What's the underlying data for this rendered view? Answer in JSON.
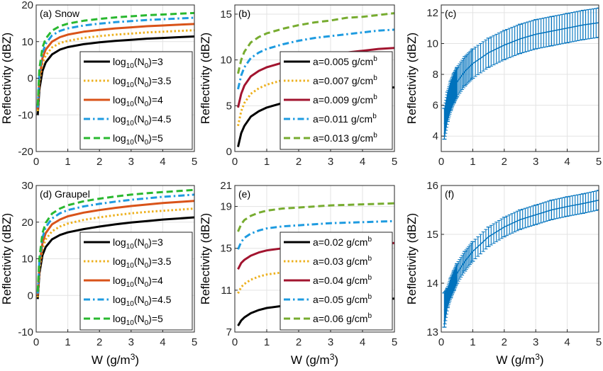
{
  "chart_data": [
    {
      "panel": "a",
      "type": "line",
      "title": "(a) Snow",
      "xlabel": "",
      "ylabel": "Reflectivity (dBZ)",
      "xlim": [
        0,
        5
      ],
      "ylim": [
        -20,
        20
      ],
      "xticks": [
        "0",
        "1",
        "2",
        "3",
        "4",
        "5"
      ],
      "yticks": [
        "-20",
        "-10",
        "0",
        "10",
        "20"
      ],
      "grid": true,
      "legend_position": "bottom-right",
      "series": [
        {
          "label_main": "log",
          "label_sub": "10",
          "label_rest": "(N",
          "label_sub2": "0",
          "label_end": ")=3",
          "color": "#000000",
          "style": "solid",
          "x": [
            0.05,
            0.1,
            0.2,
            0.3,
            0.5,
            0.75,
            1,
            1.5,
            2,
            2.5,
            3,
            3.5,
            4,
            4.5,
            5
          ],
          "y": [
            -10,
            -3,
            2,
            4.3,
            6.5,
            7.8,
            8.5,
            9.3,
            9.8,
            10.2,
            10.5,
            10.8,
            11.0,
            11.2,
            11.4
          ]
        },
        {
          "label_main": "log",
          "label_sub": "10",
          "label_rest": "(N",
          "label_sub2": "0",
          "label_end": ")=3.5",
          "color": "#EDB120",
          "style": "dotted",
          "x": [
            0.05,
            0.1,
            0.2,
            0.3,
            0.5,
            0.75,
            1,
            1.5,
            2,
            2.5,
            3,
            3.5,
            4,
            4.5,
            5
          ],
          "y": [
            -9,
            -1,
            4,
            6.2,
            8.4,
            9.6,
            10.2,
            11.0,
            11.5,
            11.9,
            12.2,
            12.5,
            12.7,
            12.9,
            13.1
          ]
        },
        {
          "label_main": "log",
          "label_sub": "10",
          "label_rest": "(N",
          "label_sub2": "0",
          "label_end": ")=4",
          "color": "#D95319",
          "style": "solid",
          "x": [
            0.05,
            0.1,
            0.2,
            0.3,
            0.5,
            0.75,
            1,
            1.5,
            2,
            2.5,
            3,
            3.5,
            4,
            4.5,
            5
          ],
          "y": [
            -8.5,
            0,
            5.5,
            7.8,
            10.0,
            11.2,
            11.9,
            12.7,
            13.2,
            13.6,
            13.9,
            14.2,
            14.4,
            14.6,
            14.8
          ]
        },
        {
          "label_main": "log",
          "label_sub": "10",
          "label_rest": "(N",
          "label_sub2": "0",
          "label_end": ")=4.5",
          "color": "#1E9BE0",
          "style": "dashdot",
          "x": [
            0.05,
            0.1,
            0.2,
            0.3,
            0.5,
            0.75,
            1,
            1.5,
            2,
            2.5,
            3,
            3.5,
            4,
            4.5,
            5
          ],
          "y": [
            -8,
            1.5,
            7,
            9.4,
            11.7,
            12.9,
            13.6,
            14.4,
            14.9,
            15.3,
            15.6,
            15.9,
            16.1,
            16.3,
            16.5
          ]
        },
        {
          "label_main": "log",
          "label_sub": "10",
          "label_rest": "(N",
          "label_sub2": "0",
          "label_end": ")=5",
          "color": "#2AB830",
          "style": "dashed",
          "x": [
            0.05,
            0.1,
            0.2,
            0.3,
            0.5,
            0.75,
            1,
            1.5,
            2,
            2.5,
            3,
            3.5,
            4,
            4.5,
            5
          ],
          "y": [
            -7.5,
            2.5,
            8.4,
            10.8,
            13.0,
            14.2,
            14.9,
            15.7,
            16.2,
            16.6,
            16.9,
            17.2,
            17.4,
            17.6,
            17.8
          ]
        }
      ]
    },
    {
      "panel": "b",
      "type": "line",
      "title": "(b)",
      "xlabel": "",
      "ylabel": "Reflectivity (dBZ)",
      "xlim": [
        0,
        5
      ],
      "ylim": [
        0,
        16
      ],
      "xticks": [
        "0",
        "1",
        "2",
        "3",
        "4",
        "5"
      ],
      "yticks": [
        "0",
        "5",
        "10",
        "15"
      ],
      "grid": true,
      "legend_position": "bottom-right",
      "series": [
        {
          "label": "a=0.005 g/cm",
          "label_sup": "b",
          "color": "#000000",
          "style": "solid",
          "x": [
            0.1,
            0.2,
            0.3,
            0.5,
            0.75,
            1,
            1.5,
            2,
            2.5,
            3,
            3.5,
            4,
            4.5,
            5
          ],
          "y": [
            0.5,
            2.0,
            2.8,
            3.8,
            4.4,
            4.8,
            5.3,
            5.7,
            6.0,
            6.3,
            6.5,
            6.7,
            6.9,
            7.0
          ]
        },
        {
          "label": "a=0.007 g/cm",
          "label_sup": "b",
          "color": "#EDB120",
          "style": "dotted",
          "x": [
            0.1,
            0.2,
            0.3,
            0.5,
            0.75,
            1,
            1.5,
            2,
            2.5,
            3,
            3.5,
            4,
            4.5,
            5
          ],
          "y": [
            2.8,
            4.4,
            5.3,
            6.3,
            6.9,
            7.3,
            7.8,
            8.2,
            8.5,
            8.7,
            9.0,
            9.2,
            9.3,
            9.5
          ]
        },
        {
          "label": "a=0.009 g/cm",
          "label_sup": "b",
          "color": "#A2142F",
          "style": "solid",
          "x": [
            0.1,
            0.2,
            0.3,
            0.5,
            0.75,
            1,
            1.5,
            2,
            2.5,
            3,
            3.5,
            4,
            4.5,
            5
          ],
          "y": [
            4.8,
            6.3,
            7.2,
            8.2,
            8.8,
            9.2,
            9.7,
            10.1,
            10.4,
            10.6,
            10.8,
            11.0,
            11.2,
            11.3
          ]
        },
        {
          "label": "a=0.011 g/cm",
          "label_sup": "b",
          "color": "#1E9BE0",
          "style": "dashdot",
          "x": [
            0.1,
            0.2,
            0.3,
            0.5,
            0.75,
            1,
            1.5,
            2,
            2.5,
            3,
            3.5,
            4,
            4.5,
            5
          ],
          "y": [
            6.8,
            8.3,
            9.2,
            10.2,
            10.8,
            11.2,
            11.7,
            12.1,
            12.4,
            12.6,
            12.8,
            13.0,
            13.2,
            13.3
          ]
        },
        {
          "label": "a=0.013 g/cm",
          "label_sup": "b",
          "color": "#77AC30",
          "style": "dashed",
          "x": [
            0.1,
            0.2,
            0.3,
            0.5,
            0.75,
            1,
            1.5,
            2,
            2.5,
            3,
            3.5,
            4,
            4.5,
            5
          ],
          "y": [
            8.5,
            10.0,
            10.9,
            11.9,
            12.5,
            12.9,
            13.4,
            13.8,
            14.1,
            14.3,
            14.6,
            14.7,
            14.9,
            15.1
          ]
        }
      ]
    },
    {
      "panel": "c",
      "type": "line",
      "title": "(c)",
      "xlabel": "",
      "ylabel": "Reflectivity (dBZ)",
      "xlim": [
        0,
        5
      ],
      "ylim": [
        3,
        12.5
      ],
      "xticks": [
        "0",
        "1",
        "2",
        "3",
        "4",
        "5"
      ],
      "yticks": [
        "4",
        "6",
        "8",
        "10",
        "12"
      ],
      "grid": true,
      "errorbars": true,
      "color": "#0072BD",
      "x": [
        0.1,
        0.2,
        0.3,
        0.4,
        0.5,
        0.75,
        1,
        1.5,
        2,
        2.5,
        3,
        3.5,
        4,
        4.5,
        5
      ],
      "y": [
        4.8,
        5.9,
        6.6,
        7.1,
        7.5,
        8.2,
        8.7,
        9.4,
        9.9,
        10.3,
        10.6,
        10.8,
        11.0,
        11.2,
        11.35
      ],
      "err": [
        1.0,
        0.95,
        0.95,
        0.95,
        0.95,
        0.95,
        0.95,
        0.95,
        0.95,
        0.95,
        0.95,
        0.95,
        0.95,
        0.95,
        0.95
      ]
    },
    {
      "panel": "d",
      "type": "line",
      "title": "(d) Graupel",
      "xlabel": "W (g/m",
      "xlabel_sup": "3",
      "xlabel_end": ")",
      "ylabel": "Reflectivity (dBZ)",
      "xlim": [
        0,
        5
      ],
      "ylim": [
        -10,
        30
      ],
      "xticks": [
        "0",
        "1",
        "2",
        "3",
        "4",
        "5"
      ],
      "yticks": [
        "-10",
        "0",
        "10",
        "20",
        "30"
      ],
      "grid": true,
      "legend_position": "bottom-right",
      "series": [
        {
          "label_main": "log",
          "label_sub": "10",
          "label_rest": "(N",
          "label_sub2": "0",
          "label_end": ")=3",
          "color": "#000000",
          "style": "solid",
          "x": [
            0.05,
            0.1,
            0.2,
            0.3,
            0.5,
            0.75,
            1,
            1.5,
            2,
            2.5,
            3,
            3.5,
            4,
            4.5,
            5
          ],
          "y": [
            -1,
            6,
            11,
            13.2,
            15.3,
            16.5,
            17.2,
            18.1,
            18.8,
            19.4,
            19.9,
            20.3,
            20.7,
            21.0,
            21.3
          ]
        },
        {
          "label_main": "log",
          "label_sub": "10",
          "label_rest": "(N",
          "label_sub2": "0",
          "label_end": ")=3.5",
          "color": "#EDB120",
          "style": "dotted",
          "x": [
            0.05,
            0.1,
            0.2,
            0.3,
            0.5,
            0.75,
            1,
            1.5,
            2,
            2.5,
            3,
            3.5,
            4,
            4.5,
            5
          ],
          "y": [
            -0.5,
            7,
            12.8,
            15.3,
            17.5,
            18.8,
            19.6,
            20.6,
            21.3,
            21.9,
            22.4,
            22.8,
            23.1,
            23.4,
            23.7
          ]
        },
        {
          "label_main": "log",
          "label_sub": "10",
          "label_rest": "(N",
          "label_sub2": "0",
          "label_end": ")=4",
          "color": "#D95319",
          "style": "solid",
          "x": [
            0.05,
            0.1,
            0.2,
            0.3,
            0.5,
            0.75,
            1,
            1.5,
            2,
            2.5,
            3,
            3.5,
            4,
            4.5,
            5
          ],
          "y": [
            0,
            8,
            14.3,
            17.0,
            19.4,
            20.7,
            21.6,
            22.6,
            23.3,
            23.9,
            24.4,
            24.8,
            25.2,
            25.5,
            25.8
          ]
        },
        {
          "label_main": "log",
          "label_sub": "10",
          "label_rest": "(N",
          "label_sub2": "0",
          "label_end": ")=4.5",
          "color": "#1E9BE0",
          "style": "dashdot",
          "x": [
            0.05,
            0.1,
            0.2,
            0.3,
            0.5,
            0.75,
            1,
            1.5,
            2,
            2.5,
            3,
            3.5,
            4,
            4.5,
            5
          ],
          "y": [
            0.5,
            9,
            15.8,
            18.6,
            21.0,
            22.4,
            23.3,
            24.3,
            25.0,
            25.6,
            26.1,
            26.5,
            26.9,
            27.2,
            27.5
          ]
        },
        {
          "label_main": "log",
          "label_sub": "10",
          "label_rest": "(N",
          "label_sub2": "0",
          "label_end": ")=5",
          "color": "#2AB830",
          "style": "dashed",
          "x": [
            0.05,
            0.1,
            0.2,
            0.3,
            0.5,
            0.75,
            1,
            1.5,
            2,
            2.5,
            3,
            3.5,
            4,
            4.5,
            5
          ],
          "y": [
            1,
            10,
            17.0,
            19.8,
            22.3,
            23.7,
            24.6,
            25.7,
            26.4,
            27.0,
            27.5,
            27.9,
            28.2,
            28.5,
            28.8
          ]
        }
      ]
    },
    {
      "panel": "e",
      "type": "line",
      "title": "(e)",
      "xlabel": "W (g/m",
      "xlabel_sup": "3",
      "xlabel_end": ")",
      "ylabel": "Reflectivity (dBZ)",
      "xlim": [
        0,
        5
      ],
      "ylim": [
        7,
        21
      ],
      "xticks": [
        "0",
        "1",
        "2",
        "3",
        "4",
        "5"
      ],
      "yticks": [
        "7",
        "11",
        "15",
        "19",
        "21"
      ],
      "grid": true,
      "legend_position": "bottom-right",
      "series": [
        {
          "label": "a=0.02 g/cm",
          "label_sup": "b",
          "color": "#000000",
          "style": "solid",
          "x": [
            0.1,
            0.2,
            0.3,
            0.5,
            0.75,
            1,
            1.5,
            2,
            2.5,
            3,
            3.5,
            4,
            4.5,
            5
          ],
          "y": [
            7.6,
            8.1,
            8.4,
            8.8,
            9.1,
            9.3,
            9.5,
            9.7,
            9.8,
            9.9,
            10.0,
            10.1,
            10.15,
            10.2
          ]
        },
        {
          "label": "a=0.03 g/cm",
          "label_sup": "b",
          "color": "#EDB120",
          "style": "dotted",
          "x": [
            0.1,
            0.2,
            0.3,
            0.5,
            0.75,
            1,
            1.5,
            2,
            2.5,
            3,
            3.5,
            4,
            4.5,
            5
          ],
          "y": [
            10.7,
            11.3,
            11.6,
            12.0,
            12.3,
            12.5,
            12.7,
            12.9,
            13.0,
            13.1,
            13.2,
            13.3,
            13.35,
            13.4
          ]
        },
        {
          "label": "a=0.04 g/cm",
          "label_sup": "b",
          "color": "#A2142F",
          "style": "solid",
          "x": [
            0.1,
            0.2,
            0.3,
            0.5,
            0.75,
            1,
            1.5,
            2,
            2.5,
            3,
            3.5,
            4,
            4.5,
            5
          ],
          "y": [
            13.0,
            13.6,
            13.9,
            14.3,
            14.6,
            14.8,
            15.0,
            15.1,
            15.2,
            15.3,
            15.35,
            15.4,
            15.45,
            15.5
          ]
        },
        {
          "label": "a=0.05 g/cm",
          "label_sup": "b",
          "color": "#1E9BE0",
          "style": "dashdot",
          "x": [
            0.1,
            0.2,
            0.3,
            0.5,
            0.75,
            1,
            1.5,
            2,
            2.5,
            3,
            3.5,
            4,
            4.5,
            5
          ],
          "y": [
            14.9,
            15.6,
            16.0,
            16.4,
            16.7,
            16.9,
            17.1,
            17.2,
            17.3,
            17.4,
            17.45,
            17.5,
            17.55,
            17.6
          ]
        },
        {
          "label": "a=0.06 g/cm",
          "label_sup": "b",
          "color": "#77AC30",
          "style": "dashed",
          "x": [
            0.1,
            0.2,
            0.3,
            0.5,
            0.75,
            1,
            1.5,
            2,
            2.5,
            3,
            3.5,
            4,
            4.5,
            5
          ],
          "y": [
            16.6,
            17.3,
            17.7,
            18.1,
            18.4,
            18.6,
            18.8,
            18.9,
            19.0,
            19.1,
            19.15,
            19.2,
            19.25,
            19.3
          ]
        }
      ]
    },
    {
      "panel": "f",
      "type": "line",
      "title": "(f)",
      "xlabel": "W (g/m",
      "xlabel_sup": "3",
      "xlabel_end": ")",
      "ylabel": "Reflectivity (dBZ)",
      "xlim": [
        0,
        5
      ],
      "ylim": [
        13,
        16
      ],
      "xticks": [
        "0",
        "1",
        "2",
        "3",
        "4",
        "5"
      ],
      "yticks": [
        "13",
        "14",
        "15",
        "16"
      ],
      "grid": true,
      "errorbars": true,
      "color": "#0072BD",
      "x": [
        0.1,
        0.2,
        0.3,
        0.4,
        0.5,
        0.75,
        1,
        1.5,
        2,
        2.5,
        3,
        3.5,
        4,
        4.5,
        5
      ],
      "y": [
        13.45,
        13.7,
        13.9,
        14.05,
        14.2,
        14.45,
        14.65,
        14.95,
        15.15,
        15.3,
        15.4,
        15.5,
        15.57,
        15.63,
        15.7
      ],
      "err": [
        0.35,
        0.2,
        0.2,
        0.2,
        0.2,
        0.2,
        0.2,
        0.2,
        0.2,
        0.2,
        0.2,
        0.2,
        0.2,
        0.2,
        0.2
      ]
    }
  ]
}
